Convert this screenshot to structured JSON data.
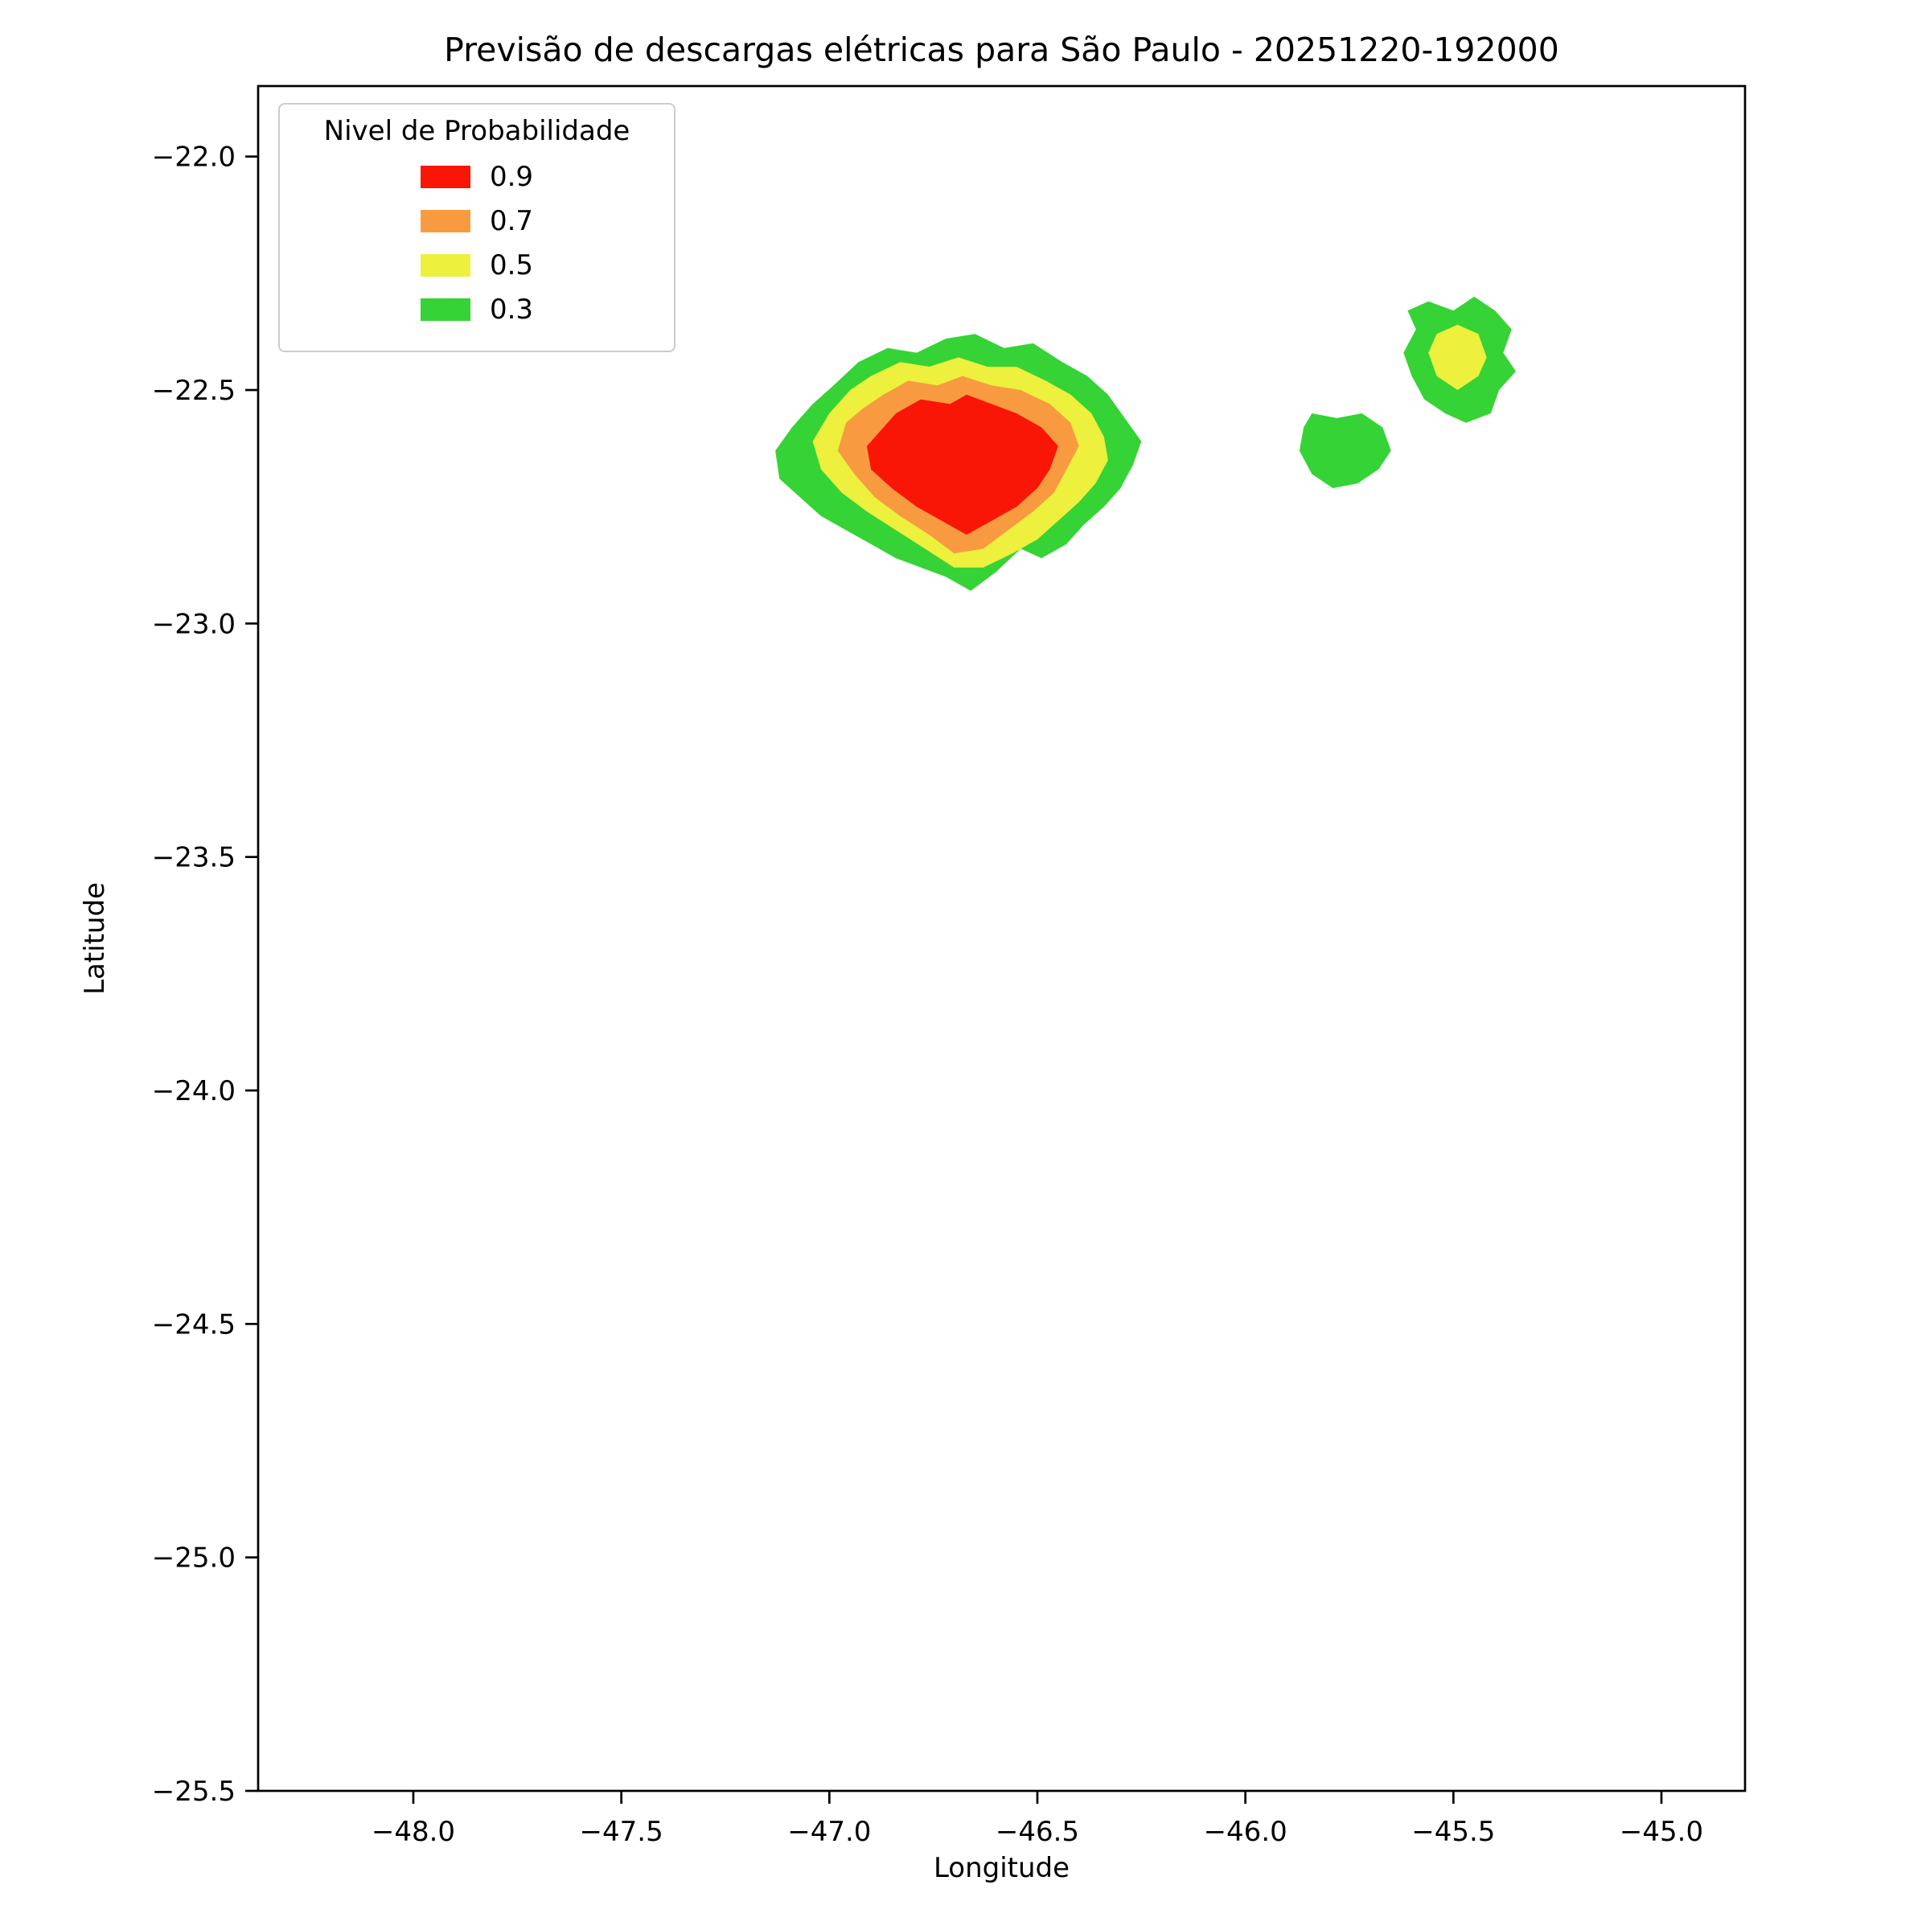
{
  "chart_data": {
    "type": "contour",
    "title": "Previsão de descargas elétricas para São Paulo - 20251220-192000",
    "xlabel": "Longitude",
    "ylabel": "Latitude",
    "xlim": [
      -48.373,
      -44.799
    ],
    "ylim": [
      -21.849,
      -25.5
    ],
    "grid": false,
    "x_ticks": {
      "values": [
        -48.0,
        -47.5,
        -47.0,
        -46.5,
        -46.0,
        -45.5,
        -45.0
      ],
      "labels": [
        "−48.0",
        "−47.5",
        "−47.0",
        "−46.5",
        "−46.0",
        "−45.5",
        "−45.0"
      ]
    },
    "y_ticks": {
      "values": [
        -22.0,
        -22.5,
        -23.0,
        -23.5,
        -24.0,
        -24.5,
        -25.0,
        -25.5
      ],
      "labels": [
        "−22.0",
        "−22.5",
        "−23.0",
        "−23.5",
        "−24.0",
        "−24.5",
        "−25.0",
        "−25.5"
      ]
    },
    "legend": {
      "title": "Nivel de Probabilidade",
      "position": "upper left",
      "items": [
        {
          "label": "0.9",
          "color": "#f91606"
        },
        {
          "label": "0.7",
          "color": "#f89b40"
        },
        {
          "label": "0.5",
          "color": "#edf03c"
        },
        {
          "label": "0.3",
          "color": "#35d336"
        }
      ]
    },
    "levels": {
      "0.3": "#35d336",
      "0.5": "#edf03c",
      "0.7": "#f89b40",
      "0.9": "#f91606"
    },
    "regions": [
      {
        "name": "main-cell-p03",
        "level": 0.3,
        "polygon": [
          [
            -46.93,
            -22.44
          ],
          [
            -46.86,
            -22.41
          ],
          [
            -46.79,
            -22.42
          ],
          [
            -46.72,
            -22.39
          ],
          [
            -46.65,
            -22.38
          ],
          [
            -46.58,
            -22.41
          ],
          [
            -46.51,
            -22.4
          ],
          [
            -46.44,
            -22.44
          ],
          [
            -46.38,
            -22.47
          ],
          [
            -46.33,
            -22.51
          ],
          [
            -46.29,
            -22.56
          ],
          [
            -46.25,
            -22.61
          ],
          [
            -46.27,
            -22.66
          ],
          [
            -46.3,
            -22.71
          ],
          [
            -46.34,
            -22.75
          ],
          [
            -46.39,
            -22.79
          ],
          [
            -46.43,
            -22.83
          ],
          [
            -46.49,
            -22.86
          ],
          [
            -46.54,
            -22.84
          ],
          [
            -46.6,
            -22.89
          ],
          [
            -46.66,
            -22.93
          ],
          [
            -46.72,
            -22.9
          ],
          [
            -46.78,
            -22.88
          ],
          [
            -46.84,
            -22.86
          ],
          [
            -46.9,
            -22.83
          ],
          [
            -46.96,
            -22.8
          ],
          [
            -47.02,
            -22.77
          ],
          [
            -47.07,
            -22.73
          ],
          [
            -47.12,
            -22.69
          ],
          [
            -47.13,
            -22.63
          ],
          [
            -47.09,
            -22.58
          ],
          [
            -47.04,
            -22.53
          ],
          [
            -46.99,
            -22.49
          ]
        ]
      },
      {
        "name": "main-cell-p05",
        "level": 0.5,
        "polygon": [
          [
            -46.9,
            -22.47
          ],
          [
            -46.83,
            -22.44
          ],
          [
            -46.76,
            -22.45
          ],
          [
            -46.69,
            -22.43
          ],
          [
            -46.62,
            -22.45
          ],
          [
            -46.55,
            -22.45
          ],
          [
            -46.48,
            -22.48
          ],
          [
            -46.42,
            -22.51
          ],
          [
            -46.37,
            -22.55
          ],
          [
            -46.34,
            -22.6
          ],
          [
            -46.33,
            -22.65
          ],
          [
            -46.36,
            -22.7
          ],
          [
            -46.4,
            -22.74
          ],
          [
            -46.45,
            -22.78
          ],
          [
            -46.5,
            -22.82
          ],
          [
            -46.56,
            -22.85
          ],
          [
            -46.63,
            -22.88
          ],
          [
            -46.7,
            -22.88
          ],
          [
            -46.77,
            -22.84
          ],
          [
            -46.84,
            -22.8
          ],
          [
            -46.91,
            -22.76
          ],
          [
            -46.97,
            -22.72
          ],
          [
            -47.02,
            -22.67
          ],
          [
            -47.04,
            -22.61
          ],
          [
            -47.0,
            -22.55
          ],
          [
            -46.95,
            -22.5
          ]
        ]
      },
      {
        "name": "main-cell-p07",
        "level": 0.7,
        "polygon": [
          [
            -46.87,
            -22.51
          ],
          [
            -46.81,
            -22.48
          ],
          [
            -46.74,
            -22.49
          ],
          [
            -46.68,
            -22.47
          ],
          [
            -46.61,
            -22.49
          ],
          [
            -46.54,
            -22.5
          ],
          [
            -46.47,
            -22.53
          ],
          [
            -46.42,
            -22.57
          ],
          [
            -46.4,
            -22.62
          ],
          [
            -46.43,
            -22.67
          ],
          [
            -46.46,
            -22.72
          ],
          [
            -46.51,
            -22.76
          ],
          [
            -46.57,
            -22.8
          ],
          [
            -46.63,
            -22.84
          ],
          [
            -46.7,
            -22.85
          ],
          [
            -46.76,
            -22.81
          ],
          [
            -46.83,
            -22.77
          ],
          [
            -46.89,
            -22.73
          ],
          [
            -46.94,
            -22.68
          ],
          [
            -46.98,
            -22.63
          ],
          [
            -46.96,
            -22.57
          ],
          [
            -46.92,
            -22.54
          ]
        ]
      },
      {
        "name": "main-cell-p09",
        "level": 0.9,
        "polygon": [
          [
            -46.84,
            -22.55
          ],
          [
            -46.78,
            -22.52
          ],
          [
            -46.71,
            -22.53
          ],
          [
            -46.67,
            -22.51
          ],
          [
            -46.61,
            -22.53
          ],
          [
            -46.55,
            -22.55
          ],
          [
            -46.49,
            -22.58
          ],
          [
            -46.45,
            -22.62
          ],
          [
            -46.47,
            -22.67
          ],
          [
            -46.5,
            -22.71
          ],
          [
            -46.55,
            -22.75
          ],
          [
            -46.61,
            -22.78
          ],
          [
            -46.67,
            -22.81
          ],
          [
            -46.73,
            -22.78
          ],
          [
            -46.79,
            -22.75
          ],
          [
            -46.85,
            -22.71
          ],
          [
            -46.9,
            -22.67
          ],
          [
            -46.91,
            -22.62
          ],
          [
            -46.87,
            -22.58
          ]
        ]
      },
      {
        "name": "small-cell-west-p03",
        "level": 0.3,
        "polygon": [
          [
            -45.84,
            -22.55
          ],
          [
            -45.78,
            -22.56
          ],
          [
            -45.72,
            -22.55
          ],
          [
            -45.67,
            -22.58
          ],
          [
            -45.65,
            -22.63
          ],
          [
            -45.68,
            -22.67
          ],
          [
            -45.73,
            -22.7
          ],
          [
            -45.79,
            -22.71
          ],
          [
            -45.84,
            -22.68
          ],
          [
            -45.87,
            -22.63
          ],
          [
            -45.86,
            -22.58
          ]
        ]
      },
      {
        "name": "small-cell-east-p03",
        "level": 0.3,
        "polygon": [
          [
            -45.56,
            -22.31
          ],
          [
            -45.5,
            -22.33
          ],
          [
            -45.45,
            -22.3
          ],
          [
            -45.4,
            -22.33
          ],
          [
            -45.36,
            -22.37
          ],
          [
            -45.38,
            -22.42
          ],
          [
            -45.35,
            -22.46
          ],
          [
            -45.39,
            -22.5
          ],
          [
            -45.41,
            -22.55
          ],
          [
            -45.47,
            -22.57
          ],
          [
            -45.52,
            -22.55
          ],
          [
            -45.57,
            -22.52
          ],
          [
            -45.6,
            -22.47
          ],
          [
            -45.62,
            -22.42
          ],
          [
            -45.59,
            -22.37
          ],
          [
            -45.61,
            -22.33
          ]
        ]
      },
      {
        "name": "small-cell-east-p05",
        "level": 0.5,
        "polygon": [
          [
            -45.54,
            -22.38
          ],
          [
            -45.49,
            -22.36
          ],
          [
            -45.44,
            -22.38
          ],
          [
            -45.42,
            -22.43
          ],
          [
            -45.44,
            -22.47
          ],
          [
            -45.49,
            -22.5
          ],
          [
            -45.54,
            -22.47
          ],
          [
            -45.56,
            -22.42
          ]
        ]
      }
    ]
  }
}
